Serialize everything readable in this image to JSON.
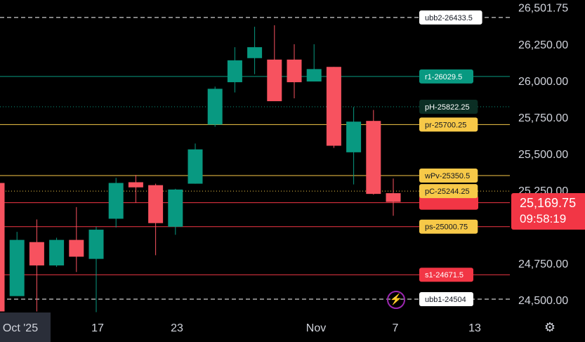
{
  "chart_data": {
    "type": "candlestick",
    "ylim": [
      24400,
      26600
    ],
    "y_ticks": [
      "24,500.00",
      "24,750.00",
      "25,250.00",
      "25,500.00",
      "25,750.00",
      "26,000.00",
      "26,250.00",
      "26,501.75"
    ],
    "x_ticks": [
      "Oct '25",
      "17",
      "23",
      "Nov",
      "7",
      "13"
    ],
    "candles": [
      {
        "o": 25300,
        "h": 25300,
        "l": 24420,
        "c": 24420
      },
      {
        "o": 24525,
        "h": 24965,
        "l": 24525,
        "c": 24910
      },
      {
        "o": 24895,
        "h": 25050,
        "l": 24420,
        "c": 24735
      },
      {
        "o": 24735,
        "h": 24925,
        "l": 24725,
        "c": 24910
      },
      {
        "o": 24910,
        "h": 25135,
        "l": 24690,
        "c": 24795
      },
      {
        "o": 24780,
        "h": 25000,
        "l": 24415,
        "c": 24980
      },
      {
        "o": 25055,
        "h": 25335,
        "l": 24995,
        "c": 25300
      },
      {
        "o": 25305,
        "h": 25355,
        "l": 25165,
        "c": 25270
      },
      {
        "o": 25285,
        "h": 25295,
        "l": 24805,
        "c": 25025
      },
      {
        "o": 25000,
        "h": 25260,
        "l": 24945,
        "c": 25255
      },
      {
        "o": 25295,
        "h": 25570,
        "l": 25295,
        "c": 25530
      },
      {
        "o": 25700,
        "h": 25960,
        "l": 25685,
        "c": 25945
      },
      {
        "o": 25990,
        "h": 26230,
        "l": 25920,
        "c": 26140
      },
      {
        "o": 26155,
        "h": 26370,
        "l": 26045,
        "c": 26230
      },
      {
        "o": 26145,
        "h": 26380,
        "l": 25870,
        "c": 25860
      },
      {
        "o": 26145,
        "h": 26250,
        "l": 25880,
        "c": 25990
      },
      {
        "o": 25995,
        "h": 26250,
        "l": 25995,
        "c": 26080
      },
      {
        "o": 26095,
        "h": 26095,
        "l": 25540,
        "c": 25555
      },
      {
        "o": 25510,
        "h": 25820,
        "l": 25290,
        "c": 25720
      },
      {
        "o": 25725,
        "h": 25800,
        "l": 25220,
        "c": 25225
      },
      {
        "o": 25230,
        "h": 25330,
        "l": 25075,
        "c": 25170
      }
    ],
    "levels": [
      {
        "label": "ubb2-26433.5",
        "value": 26433.5,
        "style": "dashed",
        "line": "#ffffff",
        "bg": "#ffffff",
        "fg": "#131722"
      },
      {
        "label": "r1-26029.5",
        "value": 26029.5,
        "style": "solid",
        "line": "#089981",
        "bg": "#089981",
        "fg": "#ffffff"
      },
      {
        "label": "pH-25822.25",
        "value": 25822.25,
        "style": "dotted",
        "line": "#089981",
        "bg": "#0b2e24",
        "fg": "#ffffff"
      },
      {
        "label": "pr-25700.25",
        "value": 25700.25,
        "style": "solid",
        "line": "#f7c948",
        "bg": "#f7c948",
        "fg": "#131722"
      },
      {
        "label": "wPv-25350.5",
        "value": 25350.5,
        "style": "solid",
        "line": "#f7c948",
        "bg": "#f7c948",
        "fg": "#131722"
      },
      {
        "label": "pC-25244.25",
        "value": 25244.25,
        "style": "dotted",
        "line": "#f7c948",
        "bg": "#f7c948",
        "fg": "#131722"
      },
      {
        "label": "ps-25000.75",
        "value": 25000.75,
        "style": "solid",
        "line": "#f23645",
        "bg": "#f7c948",
        "fg": "#131722"
      },
      {
        "label": "s1-24671.5",
        "value": 24671.5,
        "style": "solid",
        "line": "#f23645",
        "bg": "#f23645",
        "fg": "#ffffff"
      },
      {
        "label": "ubb1-24504",
        "value": 24504,
        "style": "dashed",
        "line": "#ffffff",
        "bg": "#ffffff",
        "fg": "#131722"
      }
    ],
    "hidden_level": {
      "value": 25165,
      "line": "#f23645",
      "bg": "#f23645"
    },
    "last_price": "25,169.75",
    "countdown": "09:58:19",
    "colors": {
      "up": "#089981",
      "down": "#f7525f",
      "bg": "#000000",
      "text": "#d1d4dc"
    }
  },
  "icons": {
    "alert": "lightning-icon",
    "settings": "gear-icon"
  }
}
